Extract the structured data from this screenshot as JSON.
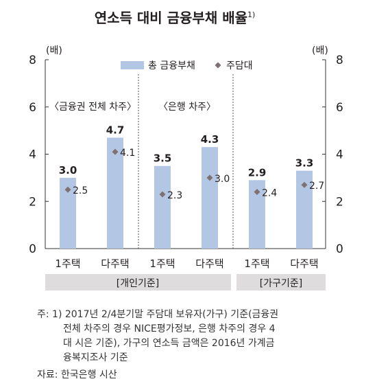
{
  "chart_data": {
    "type": "bar",
    "title": "연소득 대비 금융부채 배율",
    "title_sup": "1)",
    "unit_left": "(배)",
    "unit_right": "(배)",
    "ylim": [
      0,
      8
    ],
    "yticks": [
      0,
      2,
      4,
      6,
      8
    ],
    "grid": false,
    "legend_position": "top",
    "categories": [
      "1주택",
      "다주택",
      "1주택",
      "다주택",
      "1주택",
      "다주택"
    ],
    "series": [
      {
        "name": "총 금융부채",
        "kind": "bar",
        "color": "#b3c6e4",
        "values": [
          3.0,
          4.7,
          3.5,
          4.3,
          2.9,
          3.3
        ],
        "labels": [
          "3.0",
          "4.7",
          "3.5",
          "4.3",
          "2.9",
          "3.3"
        ]
      },
      {
        "name": "주담대",
        "kind": "marker",
        "color": "#7f7172",
        "values": [
          2.5,
          4.1,
          2.3,
          3.0,
          2.4,
          2.7
        ],
        "labels": [
          "2.5",
          "4.1",
          "2.3",
          "3.0",
          "2.4",
          "2.7"
        ]
      }
    ],
    "section_labels": [
      "〈금융권 전체 차주〉",
      "〈은행 차주〉"
    ],
    "group_labels": [
      "[개인기준]",
      "[가구기준]"
    ]
  },
  "footnote": {
    "lines": [
      "주: 1) 2017년 2/4분기말 주담대 보유자(가구) 기준(금융권",
      "전체 차주의 경우 NICE평가정보, 은행 차주의 경우 4",
      "대 시은 기준), 가구의 연소득 금액은 2016년 가계금",
      "융복지조사 기준"
    ],
    "source": "자료: 한국은행 시산"
  }
}
